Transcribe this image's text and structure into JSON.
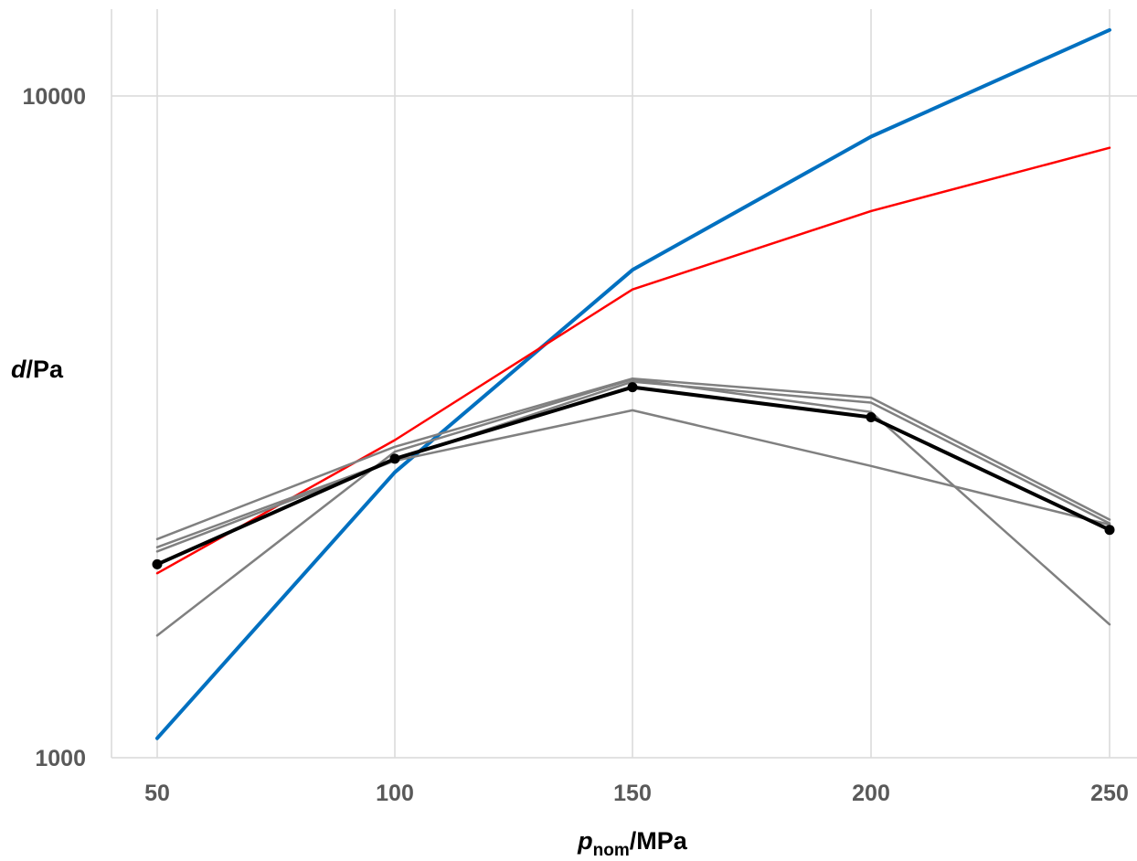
{
  "chart_data": {
    "type": "line",
    "x": [
      50,
      100,
      150,
      200,
      250
    ],
    "x_ticks": [
      "50",
      "100",
      "150",
      "200",
      "250"
    ],
    "y_ticks": [
      {
        "value": 1000,
        "label": "1000"
      },
      {
        "value": 10000,
        "label": "10000"
      }
    ],
    "ylabel": {
      "var": "d",
      "unit": "/Pa"
    },
    "xlabel": {
      "var": "p",
      "sub": "nom",
      "unit": "/MPa"
    },
    "y_scale": "log",
    "ylim": [
      1000,
      12500
    ],
    "grid": "vertical-and-major-horizontal",
    "series": [
      {
        "color": "#0070C0",
        "width": 4,
        "markers": false,
        "values": [
          1070,
          2700,
          5460,
          8680,
          12580
        ]
      },
      {
        "color": "#FF0000",
        "width": 2.5,
        "markers": false,
        "values": [
          1900,
          3020,
          5100,
          6700,
          8350
        ]
      },
      {
        "color": "#808080",
        "width": 2.5,
        "markers": false,
        "values": [
          2140,
          2950,
          3740,
          3500,
          2290
        ]
      },
      {
        "color": "#808080",
        "width": 2.5,
        "markers": false,
        "values": [
          2080,
          2820,
          3700,
          3440,
          2260
        ]
      },
      {
        "color": "#808080",
        "width": 2.5,
        "markers": false,
        "values": [
          2050,
          2810,
          3350,
          2760,
          2250
        ]
      },
      {
        "color": "#808080",
        "width": 2.5,
        "markers": false,
        "values": [
          1530,
          2900,
          3730,
          3330,
          1590
        ]
      },
      {
        "color": "#000000",
        "width": 4,
        "markers": true,
        "values": [
          1960,
          2830,
          3630,
          3270,
          2210
        ]
      }
    ]
  }
}
